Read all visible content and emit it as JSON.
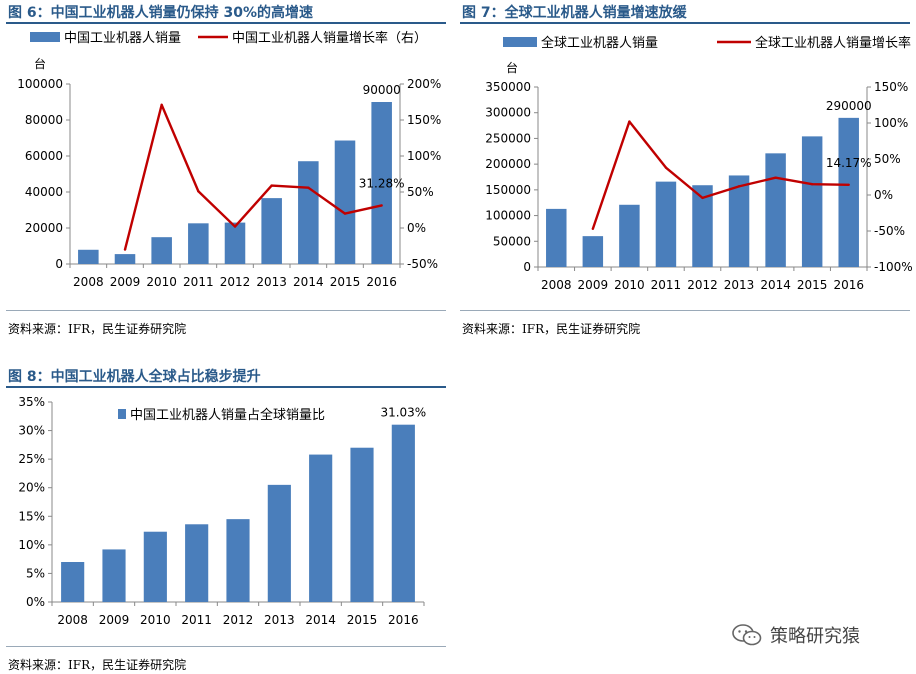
{
  "figures": {
    "fig6": {
      "title": "图 6：中国工业机器人销量仍保持 30%的高增速",
      "source": "资料来源：IFR，民生证券研究院"
    },
    "fig7": {
      "title": "图 7：全球工业机器人销量增速放缓",
      "source": "资料来源：IFR，民生证券研究院"
    },
    "fig8": {
      "title": "图 8：中国工业机器人全球占比稳步提升",
      "source": "资料来源：IFR，民生证券研究院"
    }
  },
  "watermark": {
    "text": "策略研究猿",
    "icon": "wechat-icon"
  },
  "colors": {
    "bar": "#4a7ebb",
    "line": "#c00000",
    "title": "#2a5a8a"
  },
  "chart_data": [
    {
      "id": "fig6",
      "type": "bar",
      "categories": [
        "2008",
        "2009",
        "2010",
        "2011",
        "2012",
        "2013",
        "2014",
        "2015",
        "2016"
      ],
      "series": [
        {
          "name": "中国工业机器人销量",
          "type": "bar",
          "axis": "left",
          "values": [
            7900,
            5500,
            14900,
            22600,
            23000,
            36600,
            57100,
            68600,
            90000
          ]
        },
        {
          "name": "中国工业机器人销量增长率（右）",
          "type": "line",
          "axis": "right",
          "values": [
            null,
            -30,
            171,
            51,
            2,
            59,
            56,
            20,
            31.28
          ]
        }
      ],
      "left_unit": "台",
      "ylim": [
        0,
        100000
      ],
      "yticks": [
        0,
        20000,
        40000,
        60000,
        80000,
        100000
      ],
      "y2lim": [
        -50,
        200
      ],
      "y2ticks": [
        -50,
        0,
        50,
        100,
        150,
        200
      ],
      "y2tick_labels": [
        "-50%",
        "0%",
        "50%",
        "100%",
        "150%",
        "200%"
      ],
      "annotations": [
        {
          "text": "90000",
          "series": 0,
          "index": 8
        },
        {
          "text": "31.28%",
          "series": 1,
          "index": 8
        }
      ]
    },
    {
      "id": "fig7",
      "type": "bar",
      "categories": [
        "2008",
        "2009",
        "2010",
        "2011",
        "2012",
        "2013",
        "2014",
        "2015",
        "2016"
      ],
      "series": [
        {
          "name": "全球工业机器人销量",
          "type": "bar",
          "axis": "left",
          "values": [
            113000,
            60000,
            121000,
            166000,
            159000,
            178000,
            221000,
            254000,
            290000
          ]
        },
        {
          "name": "全球工业机器人销量增长率",
          "type": "line",
          "axis": "right",
          "values": [
            null,
            -47,
            102,
            38,
            -4,
            12,
            24,
            15,
            14.17
          ]
        }
      ],
      "left_unit": "台",
      "ylim": [
        0,
        350000
      ],
      "yticks": [
        0,
        50000,
        100000,
        150000,
        200000,
        250000,
        300000,
        350000
      ],
      "y2lim": [
        -100,
        150
      ],
      "y2ticks": [
        -100,
        -50,
        0,
        50,
        100,
        150
      ],
      "y2tick_labels": [
        "-100%",
        "-50%",
        "0%",
        "50%",
        "100%",
        "150%"
      ],
      "annotations": [
        {
          "text": "290000",
          "series": 0,
          "index": 8
        },
        {
          "text": "14.17%",
          "series": 1,
          "index": 8
        }
      ]
    },
    {
      "id": "fig8",
      "type": "bar",
      "categories": [
        "2008",
        "2009",
        "2010",
        "2011",
        "2012",
        "2013",
        "2014",
        "2015",
        "2016"
      ],
      "series": [
        {
          "name": "中国工业机器人销量占全球销量比",
          "type": "bar",
          "axis": "left",
          "values": [
            7.0,
            9.2,
            12.3,
            13.6,
            14.5,
            20.5,
            25.8,
            27.0,
            31.03
          ]
        }
      ],
      "ylim": [
        0,
        35
      ],
      "yticks": [
        0,
        5,
        10,
        15,
        20,
        25,
        30,
        35
      ],
      "ytick_labels": [
        "0%",
        "5%",
        "10%",
        "15%",
        "20%",
        "25%",
        "30%",
        "35%"
      ],
      "annotations": [
        {
          "text": "31.03%",
          "series": 0,
          "index": 8
        }
      ]
    }
  ]
}
